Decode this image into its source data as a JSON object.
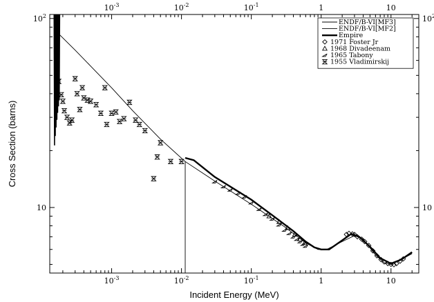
{
  "chart_data": {
    "type": "line",
    "xlabel": "Incident Energy (MeV)",
    "ylabel": "Cross Section (barns)",
    "xscale": "log",
    "yscale": "log",
    "xlim": [
      0.00013,
      25
    ],
    "ylim": [
      4.5,
      105
    ],
    "x_ticks": [
      {
        "value": 0.001,
        "base": "10",
        "exp": "-3"
      },
      {
        "value": 0.01,
        "base": "10",
        "exp": "-2"
      },
      {
        "value": 0.1,
        "base": "10",
        "exp": "-1"
      },
      {
        "value": 1,
        "label": "1"
      },
      {
        "value": 10,
        "label": "10"
      }
    ],
    "y_ticks": [
      {
        "value": 10,
        "label": "10"
      },
      {
        "value": 100,
        "base": "10",
        "exp": "2"
      }
    ],
    "legend_position": "top-right",
    "legend": [
      {
        "label": "ENDF/B-VI[MF3]",
        "kind": "line",
        "style": "thin"
      },
      {
        "label": "ENDF/B-VI[MF2]",
        "kind": "line",
        "style": "thin"
      },
      {
        "label": "Empire",
        "kind": "line",
        "style": "thick"
      },
      {
        "label": "1971 Foster Jr",
        "kind": "marker",
        "marker": "diamond"
      },
      {
        "label": "1968 Divadeenam",
        "kind": "marker",
        "marker": "triangle"
      },
      {
        "label": "1965 Tabony",
        "kind": "marker",
        "marker": "slash"
      },
      {
        "label": "1955 Vladimirskij",
        "kind": "marker",
        "marker": "hourglass"
      }
    ],
    "series": [
      {
        "name": "ENDF/B-VI[MF3]",
        "style": "thin",
        "points": [
          [
            0.00018,
            82
          ],
          [
            0.0003,
            68
          ],
          [
            0.0005,
            56
          ],
          [
            0.001,
            43
          ],
          [
            0.002,
            32.5
          ],
          [
            0.005,
            23
          ],
          [
            0.0113,
            17.5
          ]
        ]
      },
      {
        "name": "ENDF/B-VI[MF2]",
        "style": "thin",
        "points": [
          [
            0.0113,
            4.5
          ],
          [
            0.0113,
            17.5
          ],
          [
            0.03,
            13.8
          ],
          [
            0.1,
            10.4
          ],
          [
            0.3,
            7.9
          ],
          [
            0.6,
            6.5
          ],
          [
            0.9,
            6.0
          ],
          [
            1.2,
            6.0
          ],
          [
            2,
            6.6
          ],
          [
            3,
            7.1
          ],
          [
            4,
            6.8
          ],
          [
            6,
            5.6
          ],
          [
            8,
            5.1
          ],
          [
            10,
            5.0
          ],
          [
            14,
            5.3
          ],
          [
            20,
            5.7
          ]
        ]
      },
      {
        "name": "Empire",
        "style": "thick",
        "points": [
          [
            0.0113,
            18.3
          ],
          [
            0.015,
            17.8
          ],
          [
            0.03,
            14.5
          ],
          [
            0.1,
            11.0
          ],
          [
            0.2,
            9.1
          ],
          [
            0.4,
            7.5
          ],
          [
            0.6,
            6.6
          ],
          [
            0.8,
            6.15
          ],
          [
            1,
            6.0
          ],
          [
            1.3,
            6.0
          ],
          [
            2,
            6.7
          ],
          [
            2.7,
            7.25
          ],
          [
            3.5,
            7.0
          ],
          [
            5,
            6.2
          ],
          [
            7,
            5.4
          ],
          [
            10,
            5.05
          ],
          [
            14,
            5.3
          ],
          [
            20,
            5.8
          ]
        ]
      },
      {
        "name": "1971 Foster Jr",
        "marker": "diamond",
        "points": [
          [
            2.3,
            7.2
          ],
          [
            2.5,
            7.3
          ],
          [
            2.8,
            7.25
          ],
          [
            3.0,
            7.2
          ],
          [
            3.3,
            7.0
          ],
          [
            3.8,
            6.8
          ],
          [
            4.2,
            6.6
          ],
          [
            4.8,
            6.3
          ],
          [
            5.5,
            5.9
          ],
          [
            6.3,
            5.55
          ],
          [
            7.2,
            5.3
          ],
          [
            8.0,
            5.15
          ],
          [
            9.0,
            5.05
          ],
          [
            10,
            5.0
          ],
          [
            11,
            4.98
          ],
          [
            12,
            5.05
          ],
          [
            13.5,
            5.2
          ],
          [
            15,
            5.35
          ]
        ]
      },
      {
        "name": "1968 Divadeenam",
        "marker": "triangle",
        "points": [
          [
            0.18,
            9.0
          ],
          [
            0.25,
            8.4
          ],
          [
            0.33,
            7.8
          ],
          [
            0.42,
            7.2
          ],
          [
            0.5,
            6.8
          ],
          [
            0.58,
            6.5
          ]
        ]
      },
      {
        "name": "1965 Tabony",
        "marker": "slash",
        "points": [
          [
            0.03,
            13.7
          ],
          [
            0.04,
            12.9
          ],
          [
            0.05,
            12.4
          ],
          [
            0.065,
            11.9
          ],
          [
            0.08,
            11.4
          ],
          [
            0.1,
            10.6
          ],
          [
            0.13,
            9.8
          ],
          [
            0.16,
            9.2
          ],
          [
            0.2,
            8.7
          ],
          [
            0.25,
            8.1
          ],
          [
            0.3,
            7.6
          ],
          [
            0.35,
            7.3
          ],
          [
            0.4,
            7.0
          ],
          [
            0.45,
            6.8
          ],
          [
            0.5,
            6.6
          ],
          [
            0.55,
            6.4
          ],
          [
            0.6,
            6.25
          ]
        ]
      },
      {
        "name": "1955 Vladimirskij",
        "marker": "hourglass",
        "points": [
          [
            0.000175,
            46.5
          ],
          [
            0.00019,
            39.5
          ],
          [
            0.0002,
            36.5
          ],
          [
            0.00021,
            32.5
          ],
          [
            0.00023,
            30
          ],
          [
            0.00025,
            28
          ],
          [
            0.00027,
            29
          ],
          [
            0.0003,
            48
          ],
          [
            0.00032,
            40
          ],
          [
            0.00035,
            33
          ],
          [
            0.00038,
            43
          ],
          [
            0.0004,
            38
          ],
          [
            0.00045,
            37
          ],
          [
            0.0005,
            36.5
          ],
          [
            0.0006,
            35
          ],
          [
            0.0007,
            31.5
          ],
          [
            0.0008,
            43
          ],
          [
            0.00085,
            27.5
          ],
          [
            0.001,
            31.5
          ],
          [
            0.00115,
            32
          ],
          [
            0.0013,
            28.5
          ],
          [
            0.0015,
            29.5
          ],
          [
            0.0018,
            36
          ],
          [
            0.0022,
            29
          ],
          [
            0.0025,
            27.5
          ],
          [
            0.003,
            25.5
          ],
          [
            0.004,
            14.2
          ],
          [
            0.0045,
            18.5
          ],
          [
            0.005,
            22
          ],
          [
            0.007,
            17.5
          ],
          [
            0.01,
            17.5
          ]
        ]
      }
    ],
    "resonance_region": {
      "name": "low-energy resonances",
      "xrange": [
        0.00015,
        0.00018
      ],
      "ymax": 105,
      "ymin": 20
    }
  }
}
